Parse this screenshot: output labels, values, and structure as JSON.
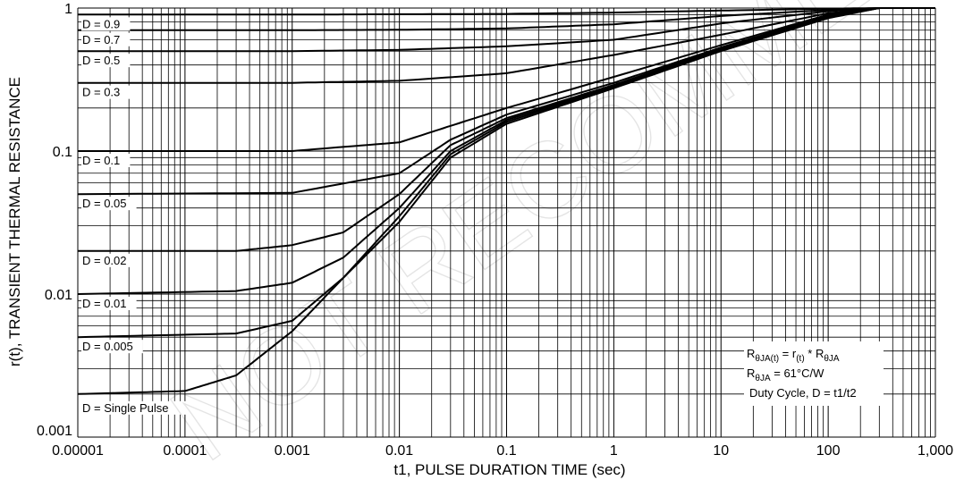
{
  "chart_data": {
    "type": "line",
    "xlabel": "t1, PULSE DURATION TIME (sec)",
    "ylabel": "r(t), TRANSIENT THERMAL RESISTANCE",
    "x_scale": "log",
    "y_scale": "log",
    "xlim": [
      1e-05,
      1000
    ],
    "ylim": [
      0.001,
      1
    ],
    "grid": true,
    "x_ticks": [
      {
        "value": 1e-05,
        "label": "0.00001"
      },
      {
        "value": 0.0001,
        "label": "0.0001"
      },
      {
        "value": 0.001,
        "label": "0.001"
      },
      {
        "value": 0.01,
        "label": "0.01"
      },
      {
        "value": 0.1,
        "label": "0.1"
      },
      {
        "value": 1,
        "label": "1"
      },
      {
        "value": 10,
        "label": "10"
      },
      {
        "value": 100,
        "label": "100"
      },
      {
        "value": 1000,
        "label": "1,000"
      }
    ],
    "y_ticks": [
      {
        "value": 0.001,
        "label": "0.001"
      },
      {
        "value": 0.01,
        "label": "0.01"
      },
      {
        "value": 0.1,
        "label": "0.1"
      },
      {
        "value": 1,
        "label": "1"
      }
    ],
    "series": [
      {
        "name": "D = 0.9",
        "x": [
          1e-05,
          0.001,
          0.01,
          0.1,
          1,
          10,
          100,
          300,
          1000
        ],
        "y": [
          0.9,
          0.9,
          0.905,
          0.91,
          0.93,
          0.96,
          0.99,
          1.0,
          1.0
        ]
      },
      {
        "name": "D = 0.7",
        "x": [
          1e-05,
          0.001,
          0.01,
          0.1,
          1,
          10,
          100,
          300,
          1000
        ],
        "y": [
          0.7,
          0.7,
          0.705,
          0.72,
          0.77,
          0.88,
          0.97,
          1.0,
          1.0
        ]
      },
      {
        "name": "D = 0.5",
        "x": [
          1e-05,
          0.001,
          0.01,
          0.1,
          1,
          10,
          100,
          300,
          1000
        ],
        "y": [
          0.5,
          0.5,
          0.51,
          0.54,
          0.6,
          0.78,
          0.95,
          1.0,
          1.0
        ]
      },
      {
        "name": "D = 0.3",
        "x": [
          1e-05,
          0.001,
          0.01,
          0.1,
          1,
          10,
          100,
          300,
          1000
        ],
        "y": [
          0.3,
          0.3,
          0.31,
          0.35,
          0.47,
          0.65,
          0.92,
          1.0,
          1.0
        ]
      },
      {
        "name": "D = 0.1",
        "x": [
          1e-05,
          0.001,
          0.01,
          0.03,
          0.1,
          1,
          10,
          100,
          300,
          1000
        ],
        "y": [
          0.1,
          0.1,
          0.115,
          0.15,
          0.2,
          0.33,
          0.55,
          0.9,
          1.0,
          1.0
        ]
      },
      {
        "name": "D = 0.05",
        "x": [
          1e-05,
          0.001,
          0.01,
          0.03,
          0.1,
          1,
          10,
          100,
          300,
          1000
        ],
        "y": [
          0.05,
          0.051,
          0.07,
          0.12,
          0.18,
          0.3,
          0.53,
          0.89,
          1.0,
          1.0
        ]
      },
      {
        "name": "D = 0.02",
        "x": [
          1e-05,
          0.0003,
          0.001,
          0.003,
          0.01,
          0.03,
          0.1,
          1,
          10,
          100,
          300,
          1000
        ],
        "y": [
          0.02,
          0.02,
          0.022,
          0.027,
          0.05,
          0.11,
          0.17,
          0.29,
          0.52,
          0.88,
          1.0,
          1.0
        ]
      },
      {
        "name": "D = 0.01",
        "x": [
          1e-05,
          0.0003,
          0.001,
          0.003,
          0.01,
          0.03,
          0.1,
          1,
          10,
          100,
          300,
          1000
        ],
        "y": [
          0.01,
          0.0105,
          0.012,
          0.018,
          0.04,
          0.1,
          0.165,
          0.285,
          0.515,
          0.87,
          1.0,
          1.0
        ]
      },
      {
        "name": "D = 0.005",
        "x": [
          1e-05,
          0.0003,
          0.001,
          0.003,
          0.01,
          0.03,
          0.1,
          1,
          10,
          100,
          300,
          1000
        ],
        "y": [
          0.005,
          0.0053,
          0.0065,
          0.013,
          0.035,
          0.095,
          0.16,
          0.28,
          0.51,
          0.86,
          1.0,
          1.0
        ]
      },
      {
        "name": "D = Single Pulse",
        "x": [
          1e-05,
          0.0001,
          0.0003,
          0.001,
          0.003,
          0.01,
          0.03,
          0.1,
          1,
          10,
          100,
          300,
          1000
        ],
        "y": [
          0.002,
          0.0021,
          0.0027,
          0.0055,
          0.013,
          0.032,
          0.09,
          0.155,
          0.275,
          0.5,
          0.85,
          1.0,
          1.0
        ]
      }
    ],
    "annotations": [
      {
        "main": "R",
        "sub": "θJA(t)",
        "mid": " = r",
        "sub2": "(t)",
        "mid2": " * R",
        "sub3": "θJA"
      },
      {
        "main": "R",
        "sub": "θJA",
        "rest": " = 61°C/W"
      },
      {
        "text": "Duty Cycle, D = t1/t2"
      }
    ],
    "watermark": "NOT RECOMMENDED FOR NEW DESIGN"
  }
}
